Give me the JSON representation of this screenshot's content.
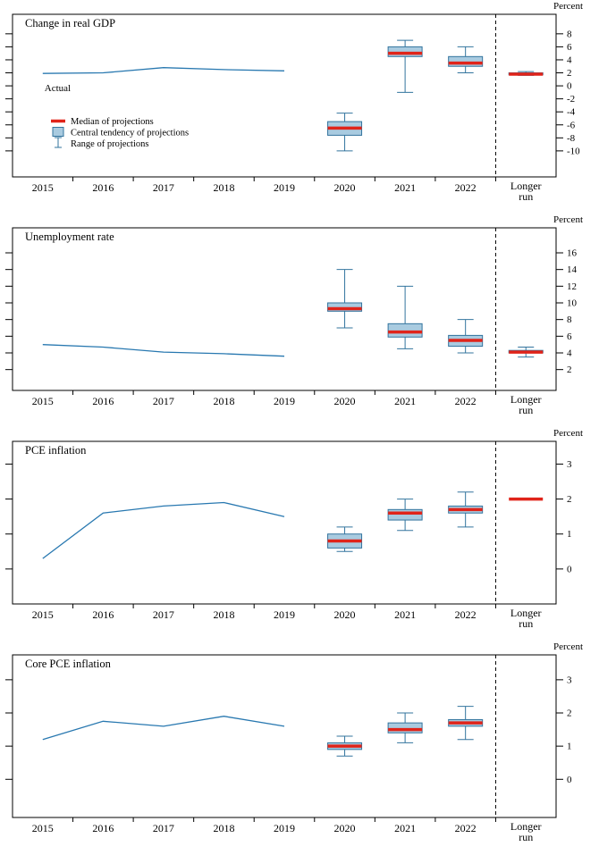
{
  "unit_label": "Percent",
  "colors": {
    "median": "#e0241a",
    "central_tendency_fill": "#a9cbe0",
    "central_tendency_stroke": "#33749e",
    "range": "#33749e",
    "actual_line": "#2878b0",
    "axis": "#000000"
  },
  "chart_data": [
    {
      "type": "line+boxplot",
      "title": "Change in real GDP",
      "unit_label": "Percent",
      "x_categories": [
        "2015",
        "2016",
        "2017",
        "2018",
        "2019",
        "2020",
        "2021",
        "2022",
        "Longer run"
      ],
      "ylim": [
        -14,
        11
      ],
      "yticks": [
        8,
        6,
        4,
        2,
        0,
        -2,
        -4,
        -6,
        -8,
        -10
      ],
      "grid": false,
      "actual": {
        "label": "Actual",
        "show_label": true,
        "years": [
          "2015",
          "2016",
          "2017",
          "2018",
          "2019"
        ],
        "values": [
          1.9,
          2.0,
          2.8,
          2.5,
          2.3
        ]
      },
      "projections": [
        {
          "category": "2020",
          "median": -6.5,
          "central_tendency": [
            -7.6,
            -5.5
          ],
          "range": [
            -10.0,
            -4.2
          ]
        },
        {
          "category": "2021",
          "median": 5.0,
          "central_tendency": [
            4.5,
            6.0
          ],
          "range": [
            -1.0,
            7.0
          ]
        },
        {
          "category": "2022",
          "median": 3.5,
          "central_tendency": [
            3.0,
            4.5
          ],
          "range": [
            2.0,
            6.0
          ]
        },
        {
          "category": "Longer run",
          "median": 1.8,
          "central_tendency": [
            1.7,
            2.0
          ],
          "range": [
            1.6,
            2.2
          ]
        }
      ],
      "legend": [
        {
          "swatch": "median",
          "label": "Median of projections"
        },
        {
          "swatch": "central-tendency",
          "label": "Central tendency of projections"
        },
        {
          "swatch": "range",
          "label": "Range of projections"
        }
      ]
    },
    {
      "type": "line+boxplot",
      "title": "Unemployment rate",
      "unit_label": "Percent",
      "x_categories": [
        "2015",
        "2016",
        "2017",
        "2018",
        "2019",
        "2020",
        "2021",
        "2022",
        "Longer run"
      ],
      "ylim": [
        -0.5,
        19
      ],
      "yticks": [
        16,
        14,
        12,
        10,
        8,
        6,
        4,
        2
      ],
      "grid": false,
      "actual": {
        "label": "Actual",
        "show_label": false,
        "years": [
          "2015",
          "2016",
          "2017",
          "2018",
          "2019"
        ],
        "values": [
          5.0,
          4.7,
          4.1,
          3.9,
          3.6
        ]
      },
      "projections": [
        {
          "category": "2020",
          "median": 9.3,
          "central_tendency": [
            9.0,
            10.0
          ],
          "range": [
            7.0,
            14.0
          ]
        },
        {
          "category": "2021",
          "median": 6.5,
          "central_tendency": [
            5.9,
            7.5
          ],
          "range": [
            4.5,
            12.0
          ]
        },
        {
          "category": "2022",
          "median": 5.5,
          "central_tendency": [
            4.8,
            6.1
          ],
          "range": [
            4.0,
            8.0
          ]
        },
        {
          "category": "Longer run",
          "median": 4.1,
          "central_tendency": [
            4.0,
            4.3
          ],
          "range": [
            3.5,
            4.7
          ]
        }
      ],
      "legend": null
    },
    {
      "type": "line+boxplot",
      "title": "PCE inflation",
      "unit_label": "Percent",
      "x_categories": [
        "2015",
        "2016",
        "2017",
        "2018",
        "2019",
        "2020",
        "2021",
        "2022",
        "Longer run"
      ],
      "ylim": [
        -1.0,
        3.65
      ],
      "yticks": [
        3,
        2,
        1,
        0
      ],
      "grid": false,
      "actual": {
        "label": "Actual",
        "show_label": false,
        "years": [
          "2015",
          "2016",
          "2017",
          "2018",
          "2019"
        ],
        "values": [
          0.3,
          1.6,
          1.8,
          1.9,
          1.5
        ]
      },
      "projections": [
        {
          "category": "2020",
          "median": 0.8,
          "central_tendency": [
            0.6,
            1.0
          ],
          "range": [
            0.5,
            1.2
          ]
        },
        {
          "category": "2021",
          "median": 1.6,
          "central_tendency": [
            1.4,
            1.7
          ],
          "range": [
            1.1,
            2.0
          ]
        },
        {
          "category": "2022",
          "median": 1.7,
          "central_tendency": [
            1.6,
            1.8
          ],
          "range": [
            1.2,
            2.2
          ]
        },
        {
          "category": "Longer run",
          "median": 2.0,
          "central_tendency": null,
          "range": null
        }
      ],
      "legend": null
    },
    {
      "type": "line+boxplot",
      "title": "Core PCE inflation",
      "unit_label": "Percent",
      "x_categories": [
        "2015",
        "2016",
        "2017",
        "2018",
        "2019",
        "2020",
        "2021",
        "2022",
        "Longer run"
      ],
      "ylim": [
        -1.15,
        3.75
      ],
      "yticks": [
        3,
        2,
        1,
        0
      ],
      "grid": false,
      "actual": {
        "label": "Actual",
        "show_label": false,
        "years": [
          "2015",
          "2016",
          "2017",
          "2018",
          "2019"
        ],
        "values": [
          1.2,
          1.75,
          1.6,
          1.9,
          1.6
        ]
      },
      "projections": [
        {
          "category": "2020",
          "median": 1.0,
          "central_tendency": [
            0.9,
            1.1
          ],
          "range": [
            0.7,
            1.3
          ]
        },
        {
          "category": "2021",
          "median": 1.5,
          "central_tendency": [
            1.4,
            1.7
          ],
          "range": [
            1.1,
            2.0
          ]
        },
        {
          "category": "2022",
          "median": 1.7,
          "central_tendency": [
            1.6,
            1.8
          ],
          "range": [
            1.2,
            2.2
          ]
        }
      ],
      "legend": null
    }
  ]
}
